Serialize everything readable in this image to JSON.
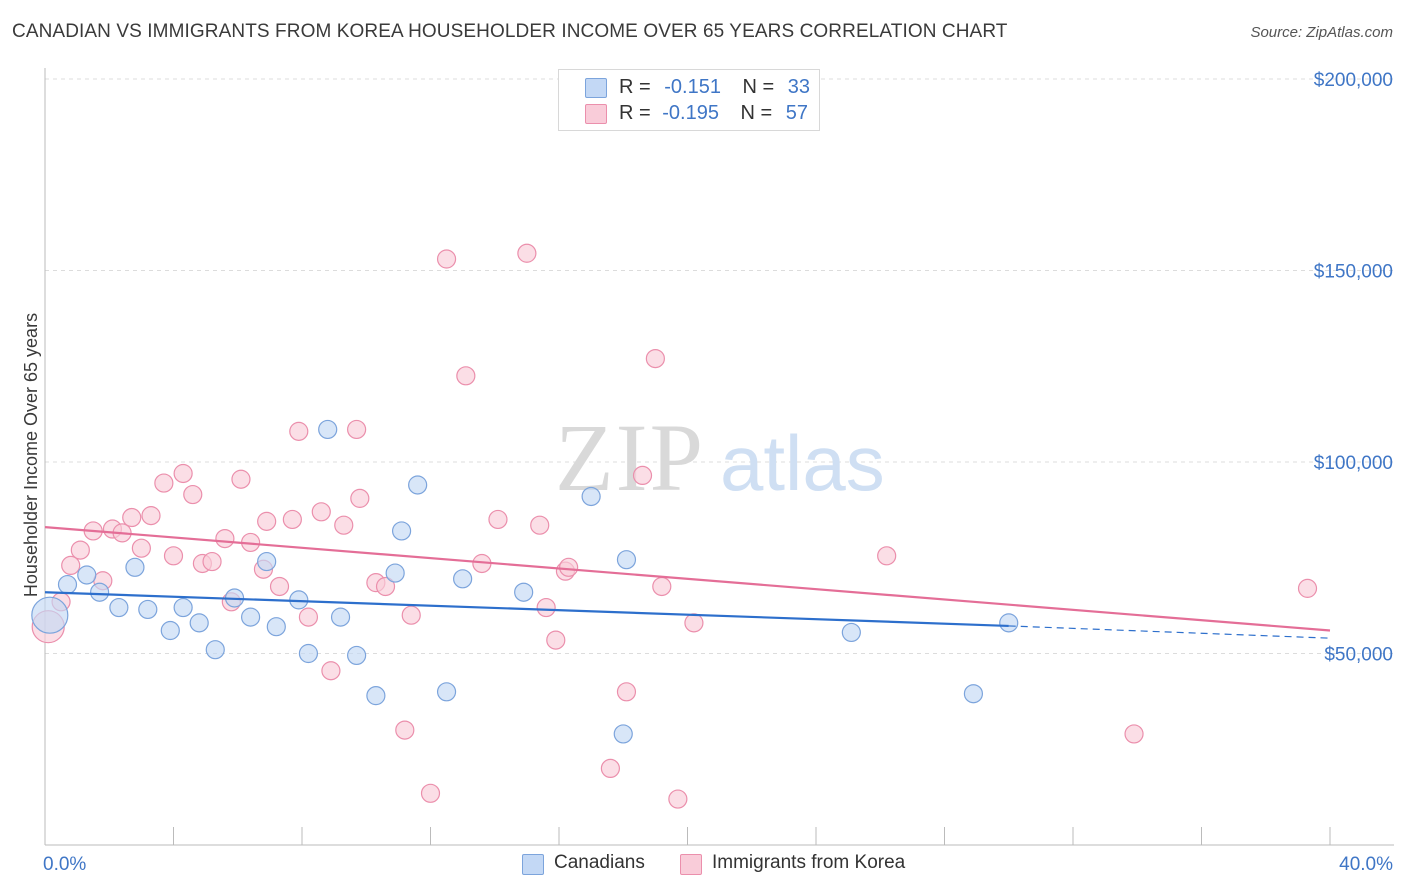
{
  "header": {
    "title": "CANADIAN VS IMMIGRANTS FROM KOREA HOUSEHOLDER INCOME OVER 65 YEARS CORRELATION CHART",
    "source": "Source: ZipAtlas.com"
  },
  "legend_top": {
    "rows": [
      {
        "r_label": "R =",
        "r_value": "-0.151",
        "n_label": "N =",
        "n_value": "33"
      },
      {
        "r_label": "R =",
        "r_value": "-0.195",
        "n_label": "N =",
        "n_value": "57"
      }
    ]
  },
  "legend_bottom": {
    "items": [
      {
        "label": "Canadians"
      },
      {
        "label": "Immigrants from Korea"
      }
    ]
  },
  "watermark": {
    "left": "ZIP",
    "right": "atlas"
  },
  "colors": {
    "blue_fill": "#c3d8f5",
    "blue_stroke": "#7ca4dc",
    "blue_line": "#2d6fcc",
    "pink_fill": "#f9ccd9",
    "pink_stroke": "#eb8fac",
    "pink_line": "#e46e97",
    "tick_text": "#3f76c6",
    "grid": "#dcdcdc"
  },
  "chart_data": {
    "type": "scatter",
    "title": "CANADIAN VS IMMIGRANTS FROM KOREA HOUSEHOLDER INCOME OVER 65 YEARS CORRELATION CHART",
    "xlabel": "",
    "ylabel": "Householder Income Over 65 years",
    "xlim": [
      0,
      40
    ],
    "ylim": [
      0,
      200000
    ],
    "x_tick_labels": [
      "0.0%",
      "40.0%"
    ],
    "y_ticks": [
      50000,
      100000,
      150000,
      200000
    ],
    "y_tick_labels": [
      "$50,000",
      "$100,000",
      "$150,000",
      "$200,000"
    ],
    "grid": "horizontal dashed",
    "legend_position": "top-center and bottom",
    "series": [
      {
        "name": "Canadians",
        "color": "blue",
        "trend": {
          "x_start": 0,
          "y_start": 66000,
          "x_solid_end": 30.0,
          "y_solid_end": 57200,
          "x_end": 40,
          "y_end": 54000
        },
        "points": [
          [
            0.15,
            60000,
            18
          ],
          [
            0.7,
            68000,
            9
          ],
          [
            1.3,
            70500,
            9
          ],
          [
            1.7,
            66000,
            9
          ],
          [
            2.3,
            62000,
            9
          ],
          [
            2.8,
            72500,
            9
          ],
          [
            3.2,
            61500,
            9
          ],
          [
            3.9,
            56000,
            9
          ],
          [
            4.3,
            62000,
            9
          ],
          [
            4.8,
            58000,
            9
          ],
          [
            5.3,
            51000,
            9
          ],
          [
            5.9,
            64500,
            9
          ],
          [
            6.4,
            59500,
            9
          ],
          [
            6.9,
            74000,
            9
          ],
          [
            7.2,
            57000,
            9
          ],
          [
            7.9,
            64000,
            9
          ],
          [
            8.2,
            50000,
            9
          ],
          [
            8.8,
            108500,
            9
          ],
          [
            9.2,
            59500,
            9
          ],
          [
            9.7,
            49500,
            9
          ],
          [
            10.3,
            39000,
            9
          ],
          [
            10.9,
            71000,
            9
          ],
          [
            11.1,
            82000,
            9
          ],
          [
            11.6,
            94000,
            9
          ],
          [
            12.5,
            40000,
            9
          ],
          [
            13.0,
            69500,
            9
          ],
          [
            14.9,
            66000,
            9
          ],
          [
            17.0,
            91000,
            9
          ],
          [
            18.0,
            29000,
            9
          ],
          [
            18.1,
            74500,
            9
          ],
          [
            25.1,
            55500,
            9
          ],
          [
            28.9,
            39500,
            9
          ],
          [
            30.0,
            58000,
            9
          ]
        ]
      },
      {
        "name": "Immigrants from Korea",
        "color": "pink",
        "trend": {
          "x_start": 0,
          "y_start": 83000,
          "x_end": 40,
          "y_end": 56000
        },
        "points": [
          [
            0.1,
            57000,
            16
          ],
          [
            0.5,
            63500,
            9
          ],
          [
            0.8,
            73000,
            9
          ],
          [
            1.1,
            77000,
            9
          ],
          [
            1.5,
            82000,
            9
          ],
          [
            1.8,
            69000,
            9
          ],
          [
            2.1,
            82500,
            9
          ],
          [
            2.4,
            81500,
            9
          ],
          [
            2.7,
            85500,
            9
          ],
          [
            3.0,
            77500,
            9
          ],
          [
            3.3,
            86000,
            9
          ],
          [
            3.7,
            94500,
            9
          ],
          [
            4.0,
            75500,
            9
          ],
          [
            4.3,
            97000,
            9
          ],
          [
            4.6,
            91500,
            9
          ],
          [
            4.9,
            73500,
            9
          ],
          [
            5.2,
            74000,
            9
          ],
          [
            5.6,
            80000,
            9
          ],
          [
            5.8,
            63500,
            9
          ],
          [
            6.1,
            95500,
            9
          ],
          [
            6.4,
            79000,
            9
          ],
          [
            6.8,
            72000,
            9
          ],
          [
            6.9,
            84500,
            9
          ],
          [
            7.3,
            67500,
            9
          ],
          [
            7.7,
            85000,
            9
          ],
          [
            7.9,
            108000,
            9
          ],
          [
            8.2,
            59500,
            9
          ],
          [
            8.6,
            87000,
            9
          ],
          [
            8.9,
            45500,
            9
          ],
          [
            9.3,
            83500,
            9
          ],
          [
            9.7,
            108500,
            9
          ],
          [
            9.8,
            90500,
            9
          ],
          [
            10.3,
            68500,
            9
          ],
          [
            10.6,
            67500,
            9
          ],
          [
            11.2,
            30000,
            9
          ],
          [
            11.4,
            60000,
            9
          ],
          [
            12.0,
            13500,
            9
          ],
          [
            12.5,
            153000,
            9
          ],
          [
            13.1,
            122500,
            9
          ],
          [
            13.6,
            73500,
            9
          ],
          [
            14.1,
            85000,
            9
          ],
          [
            15.0,
            154500,
            9
          ],
          [
            15.4,
            83500,
            9
          ],
          [
            15.6,
            62000,
            9
          ],
          [
            15.9,
            53500,
            9
          ],
          [
            16.2,
            71500,
            9
          ],
          [
            16.3,
            72500,
            9
          ],
          [
            17.6,
            20000,
            9
          ],
          [
            18.1,
            40000,
            9
          ],
          [
            18.6,
            96500,
            9
          ],
          [
            19.0,
            127000,
            9
          ],
          [
            19.2,
            67500,
            9
          ],
          [
            19.7,
            12000,
            9
          ],
          [
            20.2,
            58000,
            9
          ],
          [
            26.2,
            75500,
            9
          ],
          [
            33.9,
            29000,
            9
          ],
          [
            39.3,
            67000,
            9
          ]
        ]
      }
    ]
  }
}
